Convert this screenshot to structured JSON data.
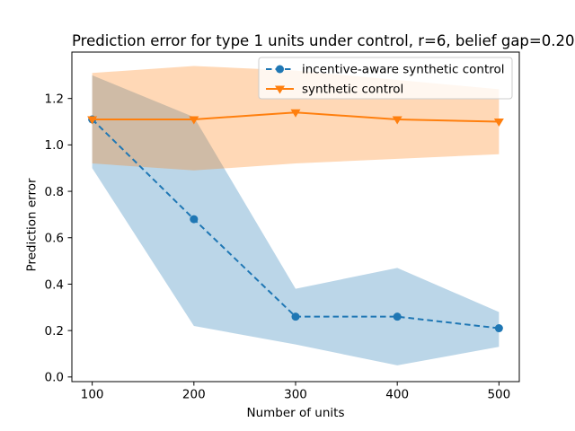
{
  "chart_data": {
    "type": "line",
    "title": "Prediction error for type 1 units under control, r=6, belief gap=0.20",
    "xlabel": "Number of units",
    "ylabel": "Prediction error",
    "xlim": [
      80,
      520
    ],
    "ylim": [
      -0.02,
      1.4
    ],
    "xticks": [
      100,
      200,
      300,
      400,
      500
    ],
    "yticks": [
      0.0,
      0.2,
      0.4,
      0.6,
      0.8,
      1.0,
      1.2
    ],
    "x": [
      100,
      200,
      300,
      400,
      500
    ],
    "grid": false,
    "legend_position": "upper right",
    "background_color": "#ffffff",
    "series": [
      {
        "name": "incentive-aware synthetic control",
        "color": "#1f77b4",
        "linestyle": "dashed",
        "marker": "circle",
        "values": [
          1.11,
          0.68,
          0.26,
          0.26,
          0.21
        ],
        "band_lower": [
          0.9,
          0.22,
          0.14,
          0.05,
          0.13
        ],
        "band_upper": [
          1.3,
          1.12,
          0.38,
          0.47,
          0.28
        ],
        "band_alpha": 0.3
      },
      {
        "name": "synthetic control",
        "color": "#ff7f0e",
        "linestyle": "solid",
        "marker": "triangle-down",
        "values": [
          1.11,
          1.11,
          1.14,
          1.11,
          1.1
        ],
        "band_lower": [
          0.92,
          0.89,
          0.92,
          0.94,
          0.96
        ],
        "band_upper": [
          1.31,
          1.34,
          1.32,
          1.28,
          1.24
        ],
        "band_alpha": 0.3
      }
    ]
  }
}
